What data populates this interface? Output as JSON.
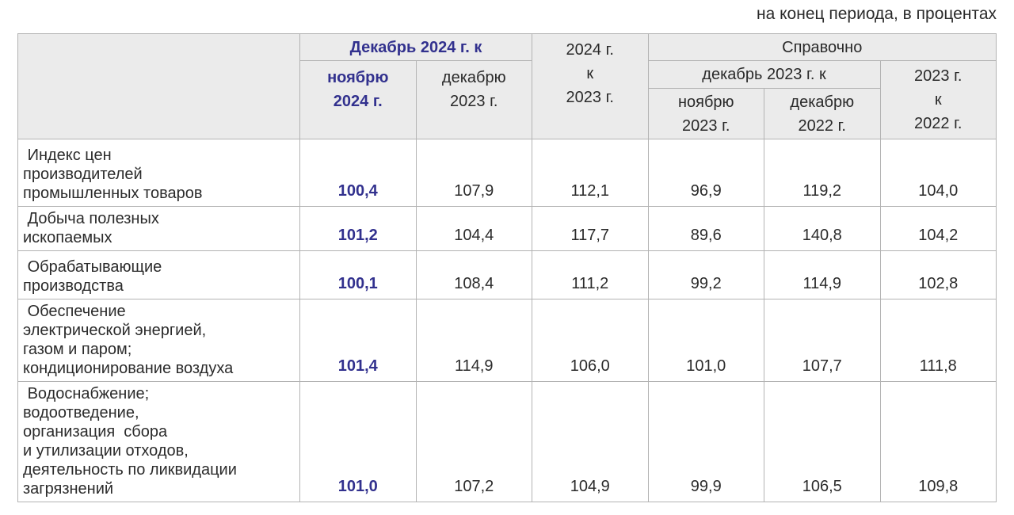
{
  "title": "на конец периода, в процентах",
  "colors": {
    "accent_navy": "#32318e",
    "text": "#2b2b2b",
    "header_bg": "#ebebeb",
    "border": "#b3b3b3"
  },
  "table": {
    "header": {
      "dec2024_group": "Декабрь 2024 г. к",
      "col_nov2024": "ноябрю\n2024 г.",
      "col_dec2023": "декабрю\n2023 г.",
      "col_2024_to_2023": "2024 г.\nк\n2023 г.",
      "spravochno": "Справочно",
      "dec2023_group": "декабрь 2023 г. к",
      "col_nov2023": "ноябрю\n2023 г.",
      "col_dec2022": "декабрю\n2022 г.",
      "col_2023_to_2022": "2023 г.\nк\n2022 г."
    },
    "rows": [
      {
        "label": " Индекс цен\nпроизводителей\nпромышленных товаров",
        "values": [
          "100,4",
          "107,9",
          "112,1",
          "96,9",
          "119,2",
          "104,0"
        ]
      },
      {
        "label": " Добыча полезных\nископаемых",
        "values": [
          "101,2",
          "104,4",
          "117,7",
          "89,6",
          "140,8",
          "104,2"
        ]
      },
      {
        "label": " Обрабатывающие\nпроизводства",
        "values": [
          "100,1",
          "108,4",
          "111,2",
          "99,2",
          "114,9",
          "102,8"
        ]
      },
      {
        "label": " Обеспечение\nэлектрической энергией,\nгазом и паром;\nкондиционирование воздуха",
        "values": [
          "101,4",
          "114,9",
          "106,0",
          "101,0",
          "107,7",
          "111,8"
        ]
      },
      {
        "label": " Водоснабжение;\nводоотведение,\nорганизация  сбора\nи утилизации отходов,\nдеятельность по ликвидации\nзагрязнений",
        "values": [
          "101,0",
          "107,2",
          "104,9",
          "99,9",
          "106,5",
          "109,8"
        ]
      }
    ]
  },
  "chart_data": {
    "type": "table",
    "title": "на конец периода, в процентах",
    "columns": [
      "Декабрь 2024 г. к ноябрю 2024 г.",
      "Декабрь 2024 г. к декабрю 2023 г.",
      "2024 г. к 2023 г.",
      "Справочно: декабрь 2023 г. к ноябрю 2023 г.",
      "Справочно: декабрь 2023 г. к декабрю 2022 г.",
      "Справочно: 2023 г. к 2022 г."
    ],
    "rows": [
      {
        "name": "Индекс цен производителей промышленных товаров",
        "values": [
          100.4,
          107.9,
          112.1,
          96.9,
          119.2,
          104.0
        ]
      },
      {
        "name": "Добыча полезных ископаемых",
        "values": [
          101.2,
          104.4,
          117.7,
          89.6,
          140.8,
          104.2
        ]
      },
      {
        "name": "Обрабатывающие производства",
        "values": [
          100.1,
          108.4,
          111.2,
          99.2,
          114.9,
          102.8
        ]
      },
      {
        "name": "Обеспечение электрической энергией, газом и паром; кондиционирование воздуха",
        "values": [
          101.4,
          114.9,
          106.0,
          101.0,
          107.7,
          111.8
        ]
      },
      {
        "name": "Водоснабжение; водоотведение, организация сбора и утилизации отходов, деятельность по ликвидации загрязнений",
        "values": [
          101.0,
          107.2,
          104.9,
          99.9,
          106.5,
          109.8
        ]
      }
    ]
  }
}
